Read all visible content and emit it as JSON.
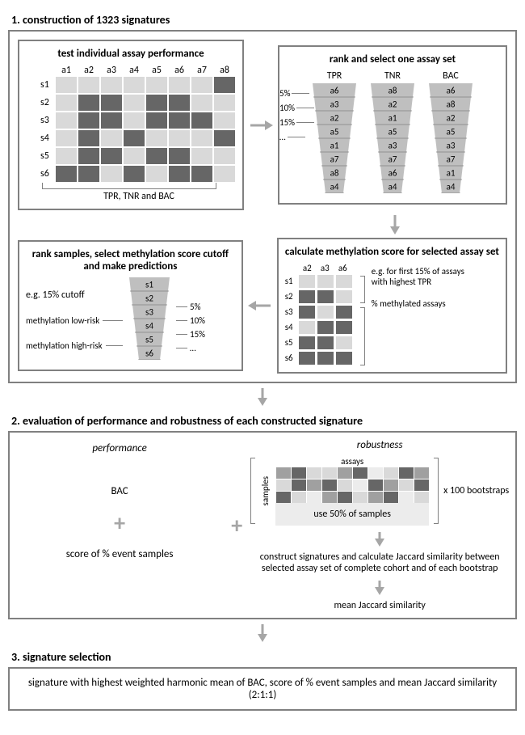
{
  "colors": {
    "dark": "#666666",
    "light": "#d9d9d9",
    "border": "#808080",
    "bg": "#ffffff"
  },
  "section1": {
    "title": "1. construction of 1323 signatures",
    "q1": {
      "title": "test individual assay performance",
      "cols": [
        "a1",
        "a2",
        "a3",
        "a4",
        "a5",
        "a6",
        "a7",
        "a8"
      ],
      "rows": [
        "s1",
        "s2",
        "s3",
        "s4",
        "s5",
        "s6"
      ],
      "grid": [
        [
          "l",
          "l",
          "l",
          "l",
          "l",
          "l",
          "l",
          "d"
        ],
        [
          "l",
          "d",
          "d",
          "l",
          "d",
          "d",
          "l",
          "l"
        ],
        [
          "l",
          "d",
          "d",
          "l",
          "d",
          "d",
          "d",
          "l"
        ],
        [
          "l",
          "d",
          "l",
          "d",
          "l",
          "l",
          "l",
          "d"
        ],
        [
          "l",
          "d",
          "d",
          "l",
          "d",
          "d",
          "l",
          "l"
        ],
        [
          "d",
          "d",
          "l",
          "d",
          "l",
          "d",
          "d",
          "l"
        ]
      ],
      "bracket_label": "TPR, TNR and BAC"
    },
    "q2": {
      "title": "rank and select one assay set",
      "funnels": [
        {
          "title": "TPR",
          "items": [
            "a6",
            "a3",
            "a2",
            "a5",
            "a1",
            "a7",
            "a8",
            "a4"
          ]
        },
        {
          "title": "TNR",
          "items": [
            "a8",
            "a2",
            "a1",
            "a5",
            "a3",
            "a7",
            "a6",
            "a4"
          ]
        },
        {
          "title": "BAC",
          "items": [
            "a6",
            "a8",
            "a2",
            "a5",
            "a3",
            "a7",
            "a1",
            "a4"
          ]
        }
      ],
      "pcts": [
        "5%",
        "10%",
        "15%",
        "…"
      ]
    },
    "q3": {
      "title": "rank samples, select methylation score cutoff and make predictions",
      "cutoff_label": "e.g. 15% cutoff",
      "low": "methylation low-risk",
      "high": "methylation high-risk",
      "items": [
        "s1",
        "s2",
        "s3",
        "s4",
        "s5",
        "s6"
      ],
      "pcts": [
        "5%",
        "10%",
        "15%",
        "…"
      ]
    },
    "q4": {
      "title": "calculate methylation score for selected assay set",
      "cols": [
        "a2",
        "a3",
        "a6"
      ],
      "rows": [
        "s1",
        "s2",
        "s3",
        "s4",
        "s5",
        "s6"
      ],
      "grid": [
        [
          "l",
          "l",
          "l"
        ],
        [
          "d",
          "d",
          "l"
        ],
        [
          "d",
          "l",
          "d"
        ],
        [
          "l",
          "d",
          "d"
        ],
        [
          "d",
          "d",
          "l"
        ],
        [
          "d",
          "d",
          "d"
        ]
      ],
      "ann1": "e.g. for first 15% of assays with highest TPR",
      "ann2": "% methylated assays"
    }
  },
  "section2": {
    "title": "2. evaluation of performance and robustness of each constructed signature",
    "performance": {
      "ital": "performance",
      "bac": "BAC",
      "score": "score of % event samples"
    },
    "robustness": {
      "ital": "robustness",
      "assays": "assays",
      "samples": "samples",
      "use50": "use 50% of samples",
      "bootstraps": "x 100 bootstraps",
      "grid": [
        [
          "m",
          "d",
          "l",
          "l",
          "m",
          "d",
          "vl",
          "l",
          "d",
          "m"
        ],
        [
          "l",
          "d",
          "m",
          "d",
          "l",
          "vl",
          "d",
          "m",
          "l",
          "d"
        ],
        [
          "d",
          "l",
          "vl",
          "m",
          "d",
          "l",
          "m",
          "d",
          "vl",
          "l"
        ]
      ],
      "construct": "construct signatures and calculate Jaccard similarity between selected assay set of complete cohort and of each bootstrap",
      "mean": "mean Jaccard similarity"
    }
  },
  "section3": {
    "title": "3. signature selection",
    "text": "signature with highest weighted harmonic mean of BAC, score of % event samples and mean Jaccard similarity (2:1:1)"
  }
}
